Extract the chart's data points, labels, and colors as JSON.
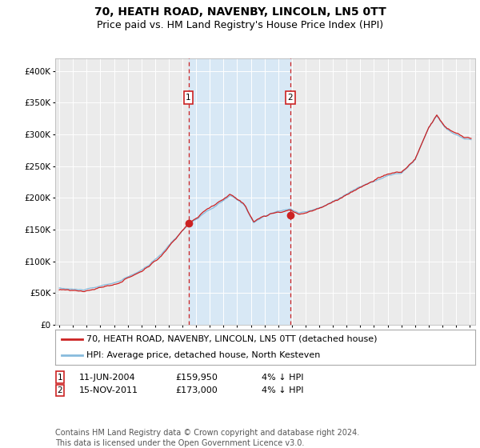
{
  "title": "70, HEATH ROAD, NAVENBY, LINCOLN, LN5 0TT",
  "subtitle": "Price paid vs. HM Land Registry's House Price Index (HPI)",
  "legend_label_red": "70, HEATH ROAD, NAVENBY, LINCOLN, LN5 0TT (detached house)",
  "legend_label_blue": "HPI: Average price, detached house, North Kesteven",
  "annotation1_date": "11-JUN-2004",
  "annotation1_price": "£159,950",
  "annotation1_hpi": "4% ↓ HPI",
  "annotation1_year": 2004.44,
  "annotation1_value": 159950,
  "annotation2_date": "15-NOV-2011",
  "annotation2_price": "£173,000",
  "annotation2_hpi": "4% ↓ HPI",
  "annotation2_year": 2011.87,
  "annotation2_value": 173000,
  "ylim": [
    0,
    420000
  ],
  "yticks": [
    0,
    50000,
    100000,
    150000,
    200000,
    250000,
    300000,
    350000,
    400000
  ],
  "background_color": "#ffffff",
  "plot_bg_color": "#ebebeb",
  "shade_color": "#d8e8f5",
  "grid_color": "#ffffff",
  "red_color": "#cc2222",
  "blue_color": "#88bbdd",
  "footer_text": "Contains HM Land Registry data © Crown copyright and database right 2024.\nThis data is licensed under the Open Government Licence v3.0.",
  "title_fontsize": 10,
  "subtitle_fontsize": 9,
  "tick_fontsize": 7.5,
  "legend_fontsize": 8,
  "footer_fontsize": 7
}
